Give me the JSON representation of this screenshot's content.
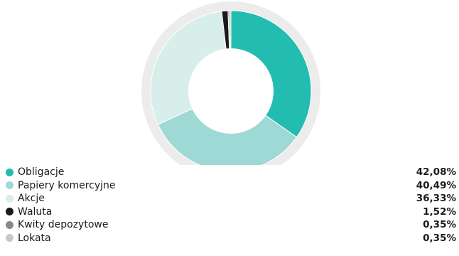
{
  "chart_data": {
    "type": "pie",
    "variant": "donut",
    "title": "",
    "legend_position": "bottom",
    "outer_ring_color": "#ececec",
    "center_color": "#ffffff",
    "slices": [
      {
        "label": "Obligacje",
        "value": 42.08,
        "value_label": "42,08%",
        "color": "#22bdb0"
      },
      {
        "label": "Papiery komercyjne",
        "value": 40.49,
        "value_label": "40,49%",
        "color": "#9fd9d5"
      },
      {
        "label": "Akcje",
        "value": 36.33,
        "value_label": "36,33%",
        "color": "#d8eeeb"
      },
      {
        "label": "Waluta",
        "value": 1.52,
        "value_label": "1,52%",
        "color": "#1a1a1a"
      },
      {
        "label": "Kwity depozytowe",
        "value": 0.35,
        "value_label": "0,35%",
        "color": "#888888"
      },
      {
        "label": "Lokata",
        "value": 0.35,
        "value_label": "0,35%",
        "color": "#c8c8c8"
      }
    ]
  }
}
